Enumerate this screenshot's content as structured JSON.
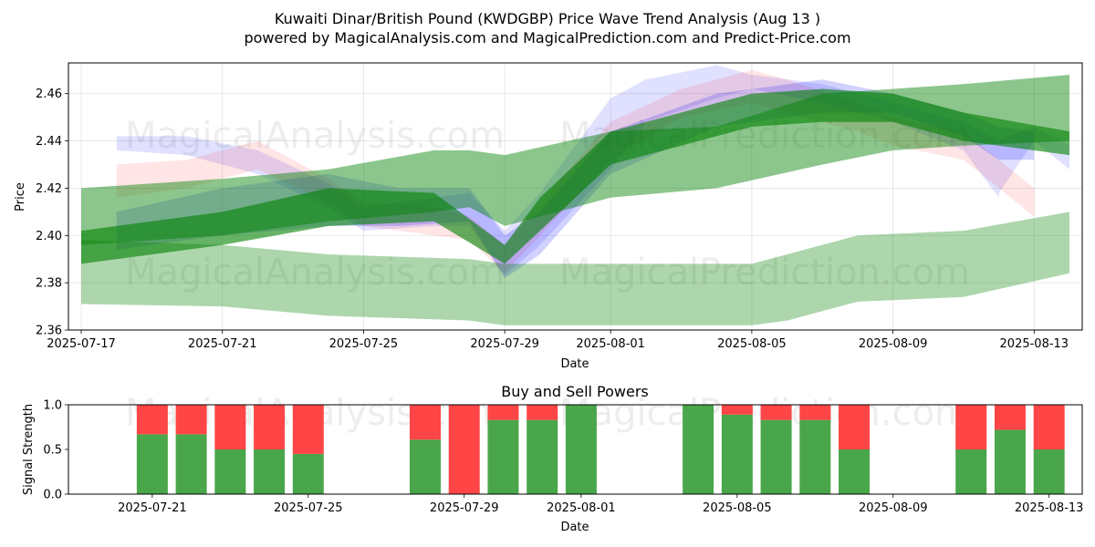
{
  "figure": {
    "title_line1": "Kuwaiti Dinar/British Pound (KWDGBP) Price Wave Trend Analysis (Aug 13 )",
    "title_line2": "powered by MagicalAnalysis.com and MagicalPrediction.com and Predict-Price.com",
    "watermarks": [
      "MagicalAnalysis.com",
      "MagicalPrediction.com"
    ]
  },
  "chart_data": [
    {
      "type": "area",
      "title": "",
      "xlabel": "Date",
      "ylabel": "Price",
      "xlim": [
        "2025-07-17",
        "2025-08-14"
      ],
      "ylim": [
        2.36,
        2.473
      ],
      "x_ticks": [
        "2025-07-17",
        "2025-07-21",
        "2025-07-25",
        "2025-07-29",
        "2025-08-01",
        "2025-08-05",
        "2025-08-09",
        "2025-08-13"
      ],
      "y_ticks": [
        2.36,
        2.38,
        2.4,
        2.42,
        2.44,
        2.46
      ],
      "grid": true,
      "series": [
        {
          "color": "#0000ff",
          "opacity": 0.12,
          "lower": [
            2.436,
            2.434,
            2.426,
            2.412,
            2.402,
            2.404,
            2.404,
            2.383,
            2.396,
            2.428,
            2.448,
            2.458,
            2.462,
            2.456,
            2.448,
            2.436,
            2.416,
            2.418,
            2.44,
            2.428
          ],
          "upper": [
            2.442,
            2.442,
            2.436,
            2.422,
            2.412,
            2.416,
            2.418,
            2.402,
            2.418,
            2.458,
            2.466,
            2.472,
            2.468,
            2.464,
            2.456,
            2.448,
            2.44,
            2.44,
            2.446,
            2.438
          ],
          "x": [
            "2025-07-18",
            "2025-07-20",
            "2025-07-22",
            "2025-07-24",
            "2025-07-25",
            "2025-07-27",
            "2025-07-28",
            "2025-07-29",
            "2025-07-30",
            "2025-08-01",
            "2025-08-02",
            "2025-08-04",
            "2025-08-05",
            "2025-08-07",
            "2025-08-09",
            "2025-08-11",
            "2025-08-12",
            "2025-08-12",
            "2025-08-13",
            "2025-08-14"
          ]
        },
        {
          "color": "#ff0000",
          "opacity": 0.1,
          "lower": [
            2.416,
            2.42,
            2.428,
            2.414,
            2.404,
            2.4,
            2.398,
            2.384,
            2.4,
            2.432,
            2.45,
            2.456,
            2.452,
            2.444,
            2.438,
            2.432,
            2.42,
            2.408
          ],
          "upper": [
            2.43,
            2.432,
            2.44,
            2.424,
            2.414,
            2.412,
            2.408,
            2.396,
            2.414,
            2.448,
            2.462,
            2.47,
            2.466,
            2.456,
            2.45,
            2.444,
            2.432,
            2.42
          ],
          "x": [
            "2025-07-18",
            "2025-07-20",
            "2025-07-22",
            "2025-07-24",
            "2025-07-25",
            "2025-07-27",
            "2025-07-28",
            "2025-07-29",
            "2025-07-30",
            "2025-08-01",
            "2025-08-03",
            "2025-08-05",
            "2025-08-06",
            "2025-08-08",
            "2025-08-09",
            "2025-08-11",
            "2025-08-12",
            "2025-08-13"
          ]
        },
        {
          "color": "#0000ff",
          "opacity": 0.18,
          "lower": [
            2.394,
            2.4,
            2.404,
            2.404,
            2.406,
            2.382,
            2.392,
            2.426,
            2.446,
            2.452,
            2.452,
            2.442,
            2.432,
            2.432
          ],
          "upper": [
            2.41,
            2.42,
            2.426,
            2.42,
            2.42,
            2.4,
            2.41,
            2.444,
            2.46,
            2.466,
            2.46,
            2.452,
            2.446,
            2.444
          ],
          "x": [
            "2025-07-18",
            "2025-07-21",
            "2025-07-24",
            "2025-07-26",
            "2025-07-28",
            "2025-07-29",
            "2025-07-30",
            "2025-08-01",
            "2025-08-04",
            "2025-08-07",
            "2025-08-09",
            "2025-08-11",
            "2025-08-12",
            "2025-08-13"
          ]
        },
        {
          "color": "#008000",
          "opacity": 0.45,
          "lower": [
            2.396,
            2.4,
            2.406,
            2.41,
            2.412,
            2.404,
            2.416,
            2.42,
            2.43,
            2.436,
            2.438,
            2.44
          ],
          "upper": [
            2.42,
            2.424,
            2.428,
            2.436,
            2.436,
            2.434,
            2.444,
            2.446,
            2.46,
            2.462,
            2.464,
            2.468
          ],
          "x": [
            "2025-07-17",
            "2025-07-21",
            "2025-07-24",
            "2025-07-27",
            "2025-07-28",
            "2025-07-29",
            "2025-08-01",
            "2025-08-04",
            "2025-08-07",
            "2025-08-09",
            "2025-08-11",
            "2025-08-14"
          ]
        },
        {
          "color": "#008000",
          "opacity": 0.6,
          "lower": [
            2.388,
            2.396,
            2.404,
            2.406,
            2.388,
            2.402,
            2.43,
            2.446,
            2.448,
            2.448,
            2.44,
            2.434
          ],
          "upper": [
            2.402,
            2.41,
            2.42,
            2.418,
            2.396,
            2.416,
            2.444,
            2.46,
            2.462,
            2.46,
            2.452,
            2.444
          ],
          "x": [
            "2025-07-17",
            "2025-07-21",
            "2025-07-24",
            "2025-07-27",
            "2025-07-29",
            "2025-07-30",
            "2025-08-01",
            "2025-08-05",
            "2025-08-07",
            "2025-08-09",
            "2025-08-11",
            "2025-08-14"
          ]
        },
        {
          "color": "#008000",
          "opacity": 0.32,
          "lower": [
            2.371,
            2.37,
            2.366,
            2.364,
            2.362,
            2.362,
            2.362,
            2.364,
            2.372,
            2.374,
            2.384
          ],
          "upper": [
            2.398,
            2.396,
            2.392,
            2.39,
            2.388,
            2.388,
            2.388,
            2.392,
            2.4,
            2.402,
            2.41
          ],
          "x": [
            "2025-07-17",
            "2025-07-21",
            "2025-07-24",
            "2025-07-28",
            "2025-07-29",
            "2025-08-01",
            "2025-08-05",
            "2025-08-06",
            "2025-08-08",
            "2025-08-11",
            "2025-08-14"
          ]
        }
      ]
    },
    {
      "type": "bar",
      "title": "Buy and Sell Powers",
      "xlabel": "Date",
      "ylabel": "Signal Strength",
      "xlim": [
        "2025-07-19",
        "2025-08-14"
      ],
      "ylim": [
        0,
        1
      ],
      "x_ticks": [
        "2025-07-21",
        "2025-07-25",
        "2025-07-29",
        "2025-08-01",
        "2025-08-05",
        "2025-08-09",
        "2025-08-13"
      ],
      "y_ticks": [
        0.0,
        0.5,
        1.0
      ],
      "grid": false,
      "categories": [
        "2025-07-21",
        "2025-07-22",
        "2025-07-23",
        "2025-07-24",
        "2025-07-25",
        "2025-07-28",
        "2025-07-29",
        "2025-07-30",
        "2025-07-31",
        "2025-08-01",
        "2025-08-04",
        "2025-08-05",
        "2025-08-06",
        "2025-08-07",
        "2025-08-08",
        "2025-08-11",
        "2025-08-12",
        "2025-08-13"
      ],
      "series": [
        {
          "color": "#4aa64a",
          "values": [
            0.67,
            0.67,
            0.5,
            0.5,
            0.45,
            0.61,
            0.0,
            0.83,
            0.83,
            1.0,
            1.0,
            0.89,
            0.83,
            0.83,
            0.5,
            0.5,
            0.72,
            0.5
          ]
        },
        {
          "color": "#ff4545",
          "values": [
            0.33,
            0.33,
            0.5,
            0.5,
            0.55,
            0.39,
            1.0,
            0.17,
            0.17,
            0.0,
            0.0,
            0.11,
            0.17,
            0.17,
            0.5,
            0.5,
            0.28,
            0.5
          ]
        }
      ]
    }
  ]
}
